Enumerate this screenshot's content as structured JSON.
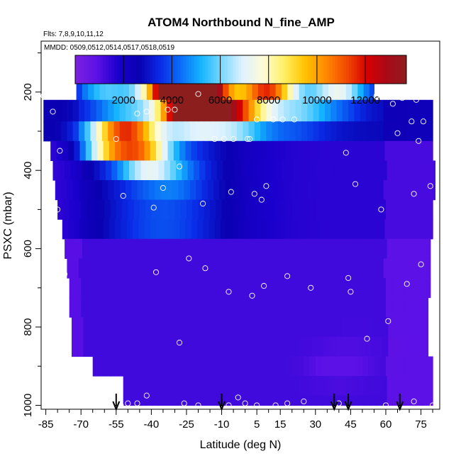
{
  "chart_data": {
    "type": "heatmap",
    "title": "ATOM4 Northbound N_fine_AMP",
    "subtitle_flights": "Flts: 7,8,9,10,11,12",
    "subtitle_dates": "MMDD: 0509,0512,0514,0517,0518,0519",
    "xlabel": "Latitude (deg N)",
    "ylabel": "PSXC (mbar)",
    "xlim": [
      -87,
      83
    ],
    "ylim": [
      1010,
      70
    ],
    "x_ticks": [
      "-85",
      "-70",
      "-55",
      "-40",
      "-25",
      "-10",
      "5",
      "15",
      "30",
      "45",
      "60",
      "75"
    ],
    "x_tick_values": [
      -85,
      -70,
      -55,
      -40,
      -25,
      -10,
      5,
      15,
      30,
      45,
      60,
      75
    ],
    "y_ticks": [
      "200",
      "400",
      "600",
      "800",
      "1000"
    ],
    "y_tick_values": [
      200,
      400,
      600,
      800,
      1000
    ],
    "colorbar": {
      "min": 0,
      "max": 13700,
      "ticks": [
        "2000",
        "4000",
        "6000",
        "8000",
        "10000",
        "12000"
      ],
      "tick_values": [
        2000,
        4000,
        6000,
        8000,
        10000,
        12000
      ],
      "colors": [
        "#7b1fe0",
        "#5a10e6",
        "#1a00cc",
        "#0a00b0",
        "#0a2ae6",
        "#0b6cf7",
        "#14b4ff",
        "#7ad8ff",
        "#dff2ff",
        "#fffbd6",
        "#fff066",
        "#ffc400",
        "#ff8a00",
        "#f24d00",
        "#d60000",
        "#a80a18",
        "#8c1e1e"
      ]
    },
    "field": {
      "note_levels_mbar": [
        190,
        250,
        300,
        350,
        400,
        450,
        500,
        550,
        600,
        650,
        700,
        750,
        800,
        850,
        900,
        950,
        1000
      ],
      "lat_range_by_level": [
        [
          -72,
          55
        ],
        [
          -86,
          80
        ],
        [
          -86,
          80
        ],
        [
          -83,
          80
        ],
        [
          -82,
          81
        ],
        [
          -81,
          81
        ],
        [
          -80,
          80
        ],
        [
          -78,
          80
        ],
        [
          -77,
          79
        ],
        [
          -76,
          79
        ],
        [
          -75,
          79
        ],
        [
          -75,
          78
        ],
        [
          -74,
          78
        ],
        [
          -74,
          78
        ],
        [
          -65,
          80
        ],
        [
          -52,
          80
        ],
        [
          -52,
          80
        ]
      ],
      "hotspots": [
        {
          "lat": -20,
          "p": 200,
          "value": 13000
        },
        {
          "lat": -32,
          "p": 200,
          "value": 10000
        },
        {
          "lat": 10,
          "p": 200,
          "value": 9000
        },
        {
          "lat": 40,
          "p": 200,
          "value": 6000
        },
        {
          "lat": -60,
          "p": 200,
          "value": 4000
        },
        {
          "lat": -22,
          "p": 245,
          "value": 10500
        },
        {
          "lat": -5,
          "p": 250,
          "value": 7500
        },
        {
          "lat": 25,
          "p": 250,
          "value": 3500
        },
        {
          "lat": -50,
          "p": 290,
          "value": 5000
        },
        {
          "lat": -58,
          "p": 330,
          "value": 8000
        },
        {
          "lat": -45,
          "p": 330,
          "value": 6000
        },
        {
          "lat": -42,
          "p": 380,
          "value": 5000
        },
        {
          "lat": -30,
          "p": 420,
          "value": 2500
        },
        {
          "lat": -5,
          "p": 500,
          "value": 1500
        },
        {
          "lat": 48,
          "p": 850,
          "value": 1400
        },
        {
          "lat": 40,
          "p": 900,
          "value": 900
        }
      ]
    },
    "samples": [
      [
        -86,
        210
      ],
      [
        -82,
        250
      ],
      [
        -74,
        200
      ],
      [
        -79,
        350
      ],
      [
        -80,
        500
      ],
      [
        -77,
        665
      ],
      [
        -78,
        815
      ],
      [
        -55,
        320
      ],
      [
        -52,
        465
      ],
      [
        -46,
        255
      ],
      [
        -42,
        250
      ],
      [
        -39,
        495
      ],
      [
        -38,
        660
      ],
      [
        -35,
        445
      ],
      [
        -33,
        245
      ],
      [
        -30,
        245
      ],
      [
        -28,
        390
      ],
      [
        -28,
        840
      ],
      [
        -24,
        625
      ],
      [
        -20,
        205
      ],
      [
        -18,
        485
      ],
      [
        -17,
        650
      ],
      [
        -13,
        320
      ],
      [
        -9,
        320
      ],
      [
        -7,
        710
      ],
      [
        -6,
        455
      ],
      [
        -5,
        320
      ],
      [
        -3,
        980
      ],
      [
        0,
        995
      ],
      [
        1,
        320
      ],
      [
        2,
        320
      ],
      [
        3,
        720
      ],
      [
        4,
        460
      ],
      [
        5,
        270
      ],
      [
        7,
        475
      ],
      [
        8,
        695
      ],
      [
        9,
        440
      ],
      [
        12,
        270
      ],
      [
        16,
        270
      ],
      [
        18,
        670
      ],
      [
        21,
        270
      ],
      [
        28,
        700
      ],
      [
        43,
        355
      ],
      [
        44,
        675
      ],
      [
        45,
        710
      ],
      [
        47,
        435
      ],
      [
        52,
        830
      ],
      [
        56,
        210
      ],
      [
        58,
        500
      ],
      [
        61,
        785
      ],
      [
        63,
        230
      ],
      [
        65,
        305
      ],
      [
        67,
        215
      ],
      [
        69,
        690
      ],
      [
        71,
        275
      ],
      [
        72,
        460
      ],
      [
        73,
        220
      ],
      [
        74,
        325
      ],
      [
        75,
        640
      ],
      [
        76,
        275
      ],
      [
        79,
        440
      ],
      [
        -65,
        985
      ],
      [
        -61,
        990
      ],
      [
        -58,
        975
      ],
      [
        -53,
        1000
      ],
      [
        -50,
        995
      ],
      [
        -46,
        995
      ],
      [
        -42,
        975
      ],
      [
        -26,
        995
      ],
      [
        -20,
        1000
      ],
      [
        -7,
        1000
      ],
      [
        5,
        1000
      ],
      [
        13,
        1000
      ],
      [
        18,
        995
      ],
      [
        25,
        990
      ],
      [
        40,
        995
      ],
      [
        60,
        1000
      ],
      [
        72,
        990
      ],
      [
        80,
        1000
      ]
    ],
    "flight_arrows_lat": [
      -55,
      -10,
      38,
      44,
      66
    ]
  }
}
